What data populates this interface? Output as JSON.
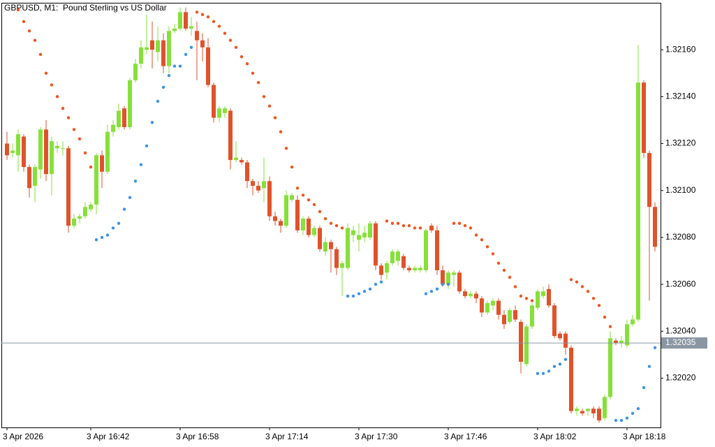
{
  "chart_data": {
    "type": "candlestick",
    "title": "GBPUSD, M1:  Pound Sterling vs US Dollar",
    "categories": [
      "3 Apr 2026",
      null,
      null,
      null,
      null,
      null,
      null,
      null,
      null,
      null,
      null,
      null,
      null,
      null,
      null,
      "3 Apr 16:42",
      null,
      null,
      null,
      null,
      null,
      null,
      null,
      null,
      null,
      null,
      null,
      null,
      null,
      null,
      null,
      "3 Apr 16:58",
      null,
      null,
      null,
      null,
      null,
      null,
      null,
      null,
      null,
      null,
      null,
      null,
      null,
      null,
      null,
      "3 Apr 17:14",
      null,
      null,
      null,
      null,
      null,
      null,
      null,
      null,
      null,
      null,
      null,
      null,
      null,
      null,
      null,
      "3 Apr 17:30",
      null,
      null,
      null,
      null,
      null,
      null,
      null,
      null,
      null,
      null,
      null,
      null,
      null,
      null,
      null,
      "3 Apr 17:46",
      null,
      null,
      null,
      null,
      null,
      null,
      null,
      null,
      null,
      null,
      null,
      null,
      null,
      null,
      null,
      "3 Apr 18:02",
      null,
      null,
      null,
      null,
      null,
      null,
      null,
      null,
      null,
      null,
      null,
      null,
      null,
      null,
      null,
      "3 Apr 18:18",
      null,
      null,
      null,
      null,
      null
    ],
    "open": [
      1.3212,
      1.32116,
      1.32115,
      1.32123,
      1.3211,
      1.32102,
      1.32109,
      1.32126,
      1.32107,
      1.32118,
      1.32118,
      1.32118,
      1.32085,
      1.32088,
      1.32089,
      1.32092,
      1.32094,
      1.32115,
      1.32108,
      1.32125,
      1.32127,
      1.32135,
      1.32127,
      1.32147,
      1.32154,
      1.3216,
      1.32164,
      1.32159,
      1.32164,
      1.32153,
      1.32168,
      1.32169,
      1.32176,
      1.32169,
      1.32168,
      1.32164,
      1.32161,
      1.32145,
      1.32131,
      1.32133,
      1.32134,
      1.32113,
      1.32113,
      1.32112,
      1.32104,
      1.32102,
      1.32101,
      1.32104,
      1.32089,
      1.32087,
      1.32085,
      1.32096,
      1.32096,
      1.32083,
      1.32088,
      1.32081,
      1.32084,
      1.32074,
      1.32078,
      1.32075,
      1.32067,
      1.32067,
      1.32081,
      1.32079,
      1.3208,
      1.3208,
      1.32086,
      1.32068,
      1.32065,
      1.32069,
      1.3207,
      1.32072,
      1.32067,
      1.32066,
      1.32066,
      1.32066,
      1.32085,
      1.32083,
      1.32066,
      1.3206,
      1.32064,
      1.32065,
      1.32057,
      1.32055,
      1.32056,
      1.32054,
      1.32048,
      1.32051,
      1.32053,
      1.32047,
      1.32044,
      1.32049,
      1.32044,
      1.32026,
      1.32042,
      1.3205,
      1.32055,
      1.32058,
      1.32051,
      1.32039,
      1.32039,
      1.32033,
      1.32006,
      1.32006,
      1.32006,
      1.32007,
      1.32007,
      1.32003,
      1.32012,
      1.32036,
      1.32035,
      1.32034,
      1.32043,
      1.32045,
      1.32146,
      1.32116,
      1.32093
    ],
    "high": [
      1.32125,
      1.3212,
      1.32126,
      1.32124,
      1.32111,
      1.32111,
      1.32127,
      1.3213,
      1.32123,
      1.32121,
      1.32121,
      1.32119,
      1.3209,
      1.3209,
      1.32095,
      1.32095,
      1.32116,
      1.32117,
      1.32128,
      1.3213,
      1.32137,
      1.32136,
      1.32148,
      1.32156,
      1.32164,
      1.32175,
      1.32172,
      1.3217,
      1.32167,
      1.3217,
      1.32171,
      1.32178,
      1.32178,
      1.32174,
      1.32172,
      1.32167,
      1.32165,
      1.32146,
      1.32136,
      1.32136,
      1.32135,
      1.32121,
      1.32114,
      1.32113,
      1.32105,
      1.32104,
      1.32114,
      1.32106,
      1.32091,
      1.32088,
      1.321,
      1.32099,
      1.32098,
      1.32089,
      1.32089,
      1.32085,
      1.32085,
      1.3208,
      1.32079,
      1.32076,
      1.3207,
      1.32086,
      1.32085,
      1.32086,
      1.32085,
      1.32087,
      1.32087,
      1.32069,
      1.3207,
      1.32075,
      1.32075,
      1.32073,
      1.32068,
      1.32068,
      1.32068,
      1.32084,
      1.32086,
      1.32085,
      1.32068,
      1.32066,
      1.32066,
      1.32066,
      1.32058,
      1.32057,
      1.32057,
      1.32055,
      1.32053,
      1.32054,
      1.32054,
      1.32049,
      1.3205,
      1.32051,
      1.32045,
      1.32043,
      1.32052,
      1.32058,
      1.32059,
      1.3206,
      1.32052,
      1.3204,
      1.3204,
      1.32034,
      1.32008,
      1.32007,
      1.32007,
      1.32008,
      1.32008,
      1.32013,
      1.3204,
      1.32037,
      1.32038,
      1.32045,
      1.32047,
      1.32162,
      1.32147,
      1.32117,
      1.32095
    ],
    "low": [
      1.32113,
      1.32114,
      1.32108,
      1.32108,
      1.32097,
      1.32095,
      1.32105,
      1.32104,
      1.32098,
      1.32116,
      1.32115,
      1.32082,
      1.32084,
      1.32086,
      1.32088,
      1.32091,
      1.3209,
      1.32101,
      1.32107,
      1.32123,
      1.32126,
      1.32126,
      1.32126,
      1.32146,
      1.32152,
      1.32158,
      1.32152,
      1.32155,
      1.3215,
      1.3215,
      1.32167,
      1.32168,
      1.32168,
      1.32166,
      1.32147,
      1.32155,
      1.32144,
      1.32129,
      1.32129,
      1.32131,
      1.32109,
      1.32112,
      1.32111,
      1.32101,
      1.32098,
      1.32099,
      1.32095,
      1.32087,
      1.32085,
      1.32082,
      1.32084,
      1.32095,
      1.32082,
      1.32081,
      1.3208,
      1.3208,
      1.32074,
      1.32072,
      1.32065,
      1.32064,
      1.32055,
      1.32066,
      1.32078,
      1.32074,
      1.32078,
      1.32079,
      1.32066,
      1.32062,
      1.32062,
      1.32068,
      1.32068,
      1.32066,
      1.32065,
      1.32065,
      1.32065,
      1.32065,
      1.32082,
      1.32064,
      1.32059,
      1.32058,
      1.32059,
      1.32056,
      1.32054,
      1.32054,
      1.32052,
      1.32046,
      1.32047,
      1.32049,
      1.32045,
      1.32041,
      1.32043,
      1.32044,
      1.32022,
      1.32025,
      1.32041,
      1.32049,
      1.32054,
      1.3205,
      1.32037,
      1.32036,
      1.3203,
      1.32005,
      1.32004,
      1.32004,
      1.32004,
      1.32003,
      1.32001,
      1.32002,
      1.32011,
      1.32034,
      1.32033,
      1.32033,
      1.32042,
      1.32044,
      1.32114,
      1.32053,
      1.32074
    ],
    "close": [
      1.32115,
      1.32117,
      1.32124,
      1.3211,
      1.32101,
      1.3211,
      1.32126,
      1.32107,
      1.32121,
      1.32119,
      1.32118,
      1.32085,
      1.32088,
      1.32089,
      1.32093,
      1.32094,
      1.32115,
      1.32108,
      1.32125,
      1.32128,
      1.32134,
      1.32127,
      1.32147,
      1.32154,
      1.32161,
      1.32161,
      1.3216,
      1.32164,
      1.32153,
      1.32168,
      1.32169,
      1.32176,
      1.32169,
      1.3217,
      1.32164,
      1.32161,
      1.32145,
      1.32131,
      1.32135,
      1.32135,
      1.32113,
      1.32114,
      1.32112,
      1.32104,
      1.32102,
      1.321,
      1.32104,
      1.32089,
      1.32087,
      1.32085,
      1.32098,
      1.32098,
      1.32083,
      1.32088,
      1.32081,
      1.32084,
      1.32075,
      1.32078,
      1.32075,
      1.32067,
      1.32069,
      1.32084,
      1.32083,
      1.32081,
      1.32082,
      1.32086,
      1.32068,
      1.32064,
      1.32069,
      1.32074,
      1.32074,
      1.32067,
      1.32066,
      1.32067,
      1.32067,
      1.32083,
      1.32083,
      1.32066,
      1.3206,
      1.32065,
      1.32065,
      1.32057,
      1.32055,
      1.32056,
      1.32054,
      1.32048,
      1.32052,
      1.32053,
      1.32047,
      1.32043,
      1.32049,
      1.32045,
      1.32027,
      1.32042,
      1.32051,
      1.32057,
      1.32057,
      1.32051,
      1.32038,
      1.32037,
      1.32033,
      1.32006,
      1.32007,
      1.32005,
      1.32007,
      1.32005,
      1.32002,
      1.32012,
      1.32037,
      1.32035,
      1.32036,
      1.32043,
      1.32045,
      1.32146,
      1.32116,
      1.32093,
      1.32076
    ],
    "up_color": "#86e03a",
    "down_color": "#e0522a",
    "sar": {
      "values": [
        null,
        null,
        1.32177,
        1.32172,
        1.32168,
        1.32164,
        1.32158,
        1.3215,
        1.32145,
        1.3214,
        1.32135,
        1.32131,
        1.32126,
        1.32122,
        1.32116,
        1.3211,
        1.32079,
        1.3208,
        1.32081,
        1.32084,
        1.32086,
        1.32092,
        1.32097,
        1.32104,
        1.32111,
        1.32119,
        1.32129,
        1.32138,
        1.32144,
        1.32149,
        1.32153,
        1.32153,
        1.32158,
        1.32161,
        1.32176,
        1.32175,
        1.32174,
        1.32172,
        1.3217,
        1.32167,
        1.32164,
        1.32161,
        1.32157,
        1.32154,
        1.3215,
        1.32146,
        1.3214,
        1.32136,
        1.32131,
        1.32125,
        1.32118,
        1.3211,
        1.32101,
        1.32098,
        1.32096,
        1.32094,
        1.32091,
        1.32088,
        1.32086,
        1.32085,
        1.32084,
        1.32055,
        1.32055,
        1.32056,
        1.32057,
        1.32058,
        1.3206,
        1.32061,
        1.32087,
        1.32086,
        1.32086,
        1.32085,
        1.32085,
        1.32084,
        1.32084,
        1.32056,
        1.32057,
        1.32058,
        1.3206,
        1.3206,
        1.32086,
        1.32086,
        1.32085,
        1.32084,
        1.32081,
        1.32079,
        1.32076,
        1.32073,
        1.32069,
        1.32066,
        1.32063,
        1.32059,
        1.32055,
        1.32054,
        1.32053,
        1.32022,
        1.32022,
        1.32023,
        1.32025,
        1.32026,
        1.32028,
        1.32062,
        1.32061,
        1.32059,
        1.32057,
        1.32054,
        1.32051,
        1.32046,
        1.32042,
        1.32002,
        1.32002,
        1.32003,
        1.32005,
        1.32007,
        1.32016,
        1.32025,
        1.32033
      ],
      "up_color": "#3b93e8",
      "down_color": "#f0541e"
    },
    "price_line": {
      "value": 1.32035,
      "color": "#8a96a2"
    },
    "ylim": [
      1.31999,
      1.3218
    ],
    "yticks": [
      {
        "value": 1.3202,
        "label": "1.32020"
      },
      {
        "value": 1.3204,
        "label": "1.32040"
      },
      {
        "value": 1.3206,
        "label": "1.32060"
      },
      {
        "value": 1.3208,
        "label": "1.32080"
      },
      {
        "value": 1.321,
        "label": "1.32100"
      },
      {
        "value": 1.3212,
        "label": "1.32120"
      },
      {
        "value": 1.3214,
        "label": "1.32140"
      },
      {
        "value": 1.3216,
        "label": "1.32160"
      }
    ],
    "grid": false
  }
}
